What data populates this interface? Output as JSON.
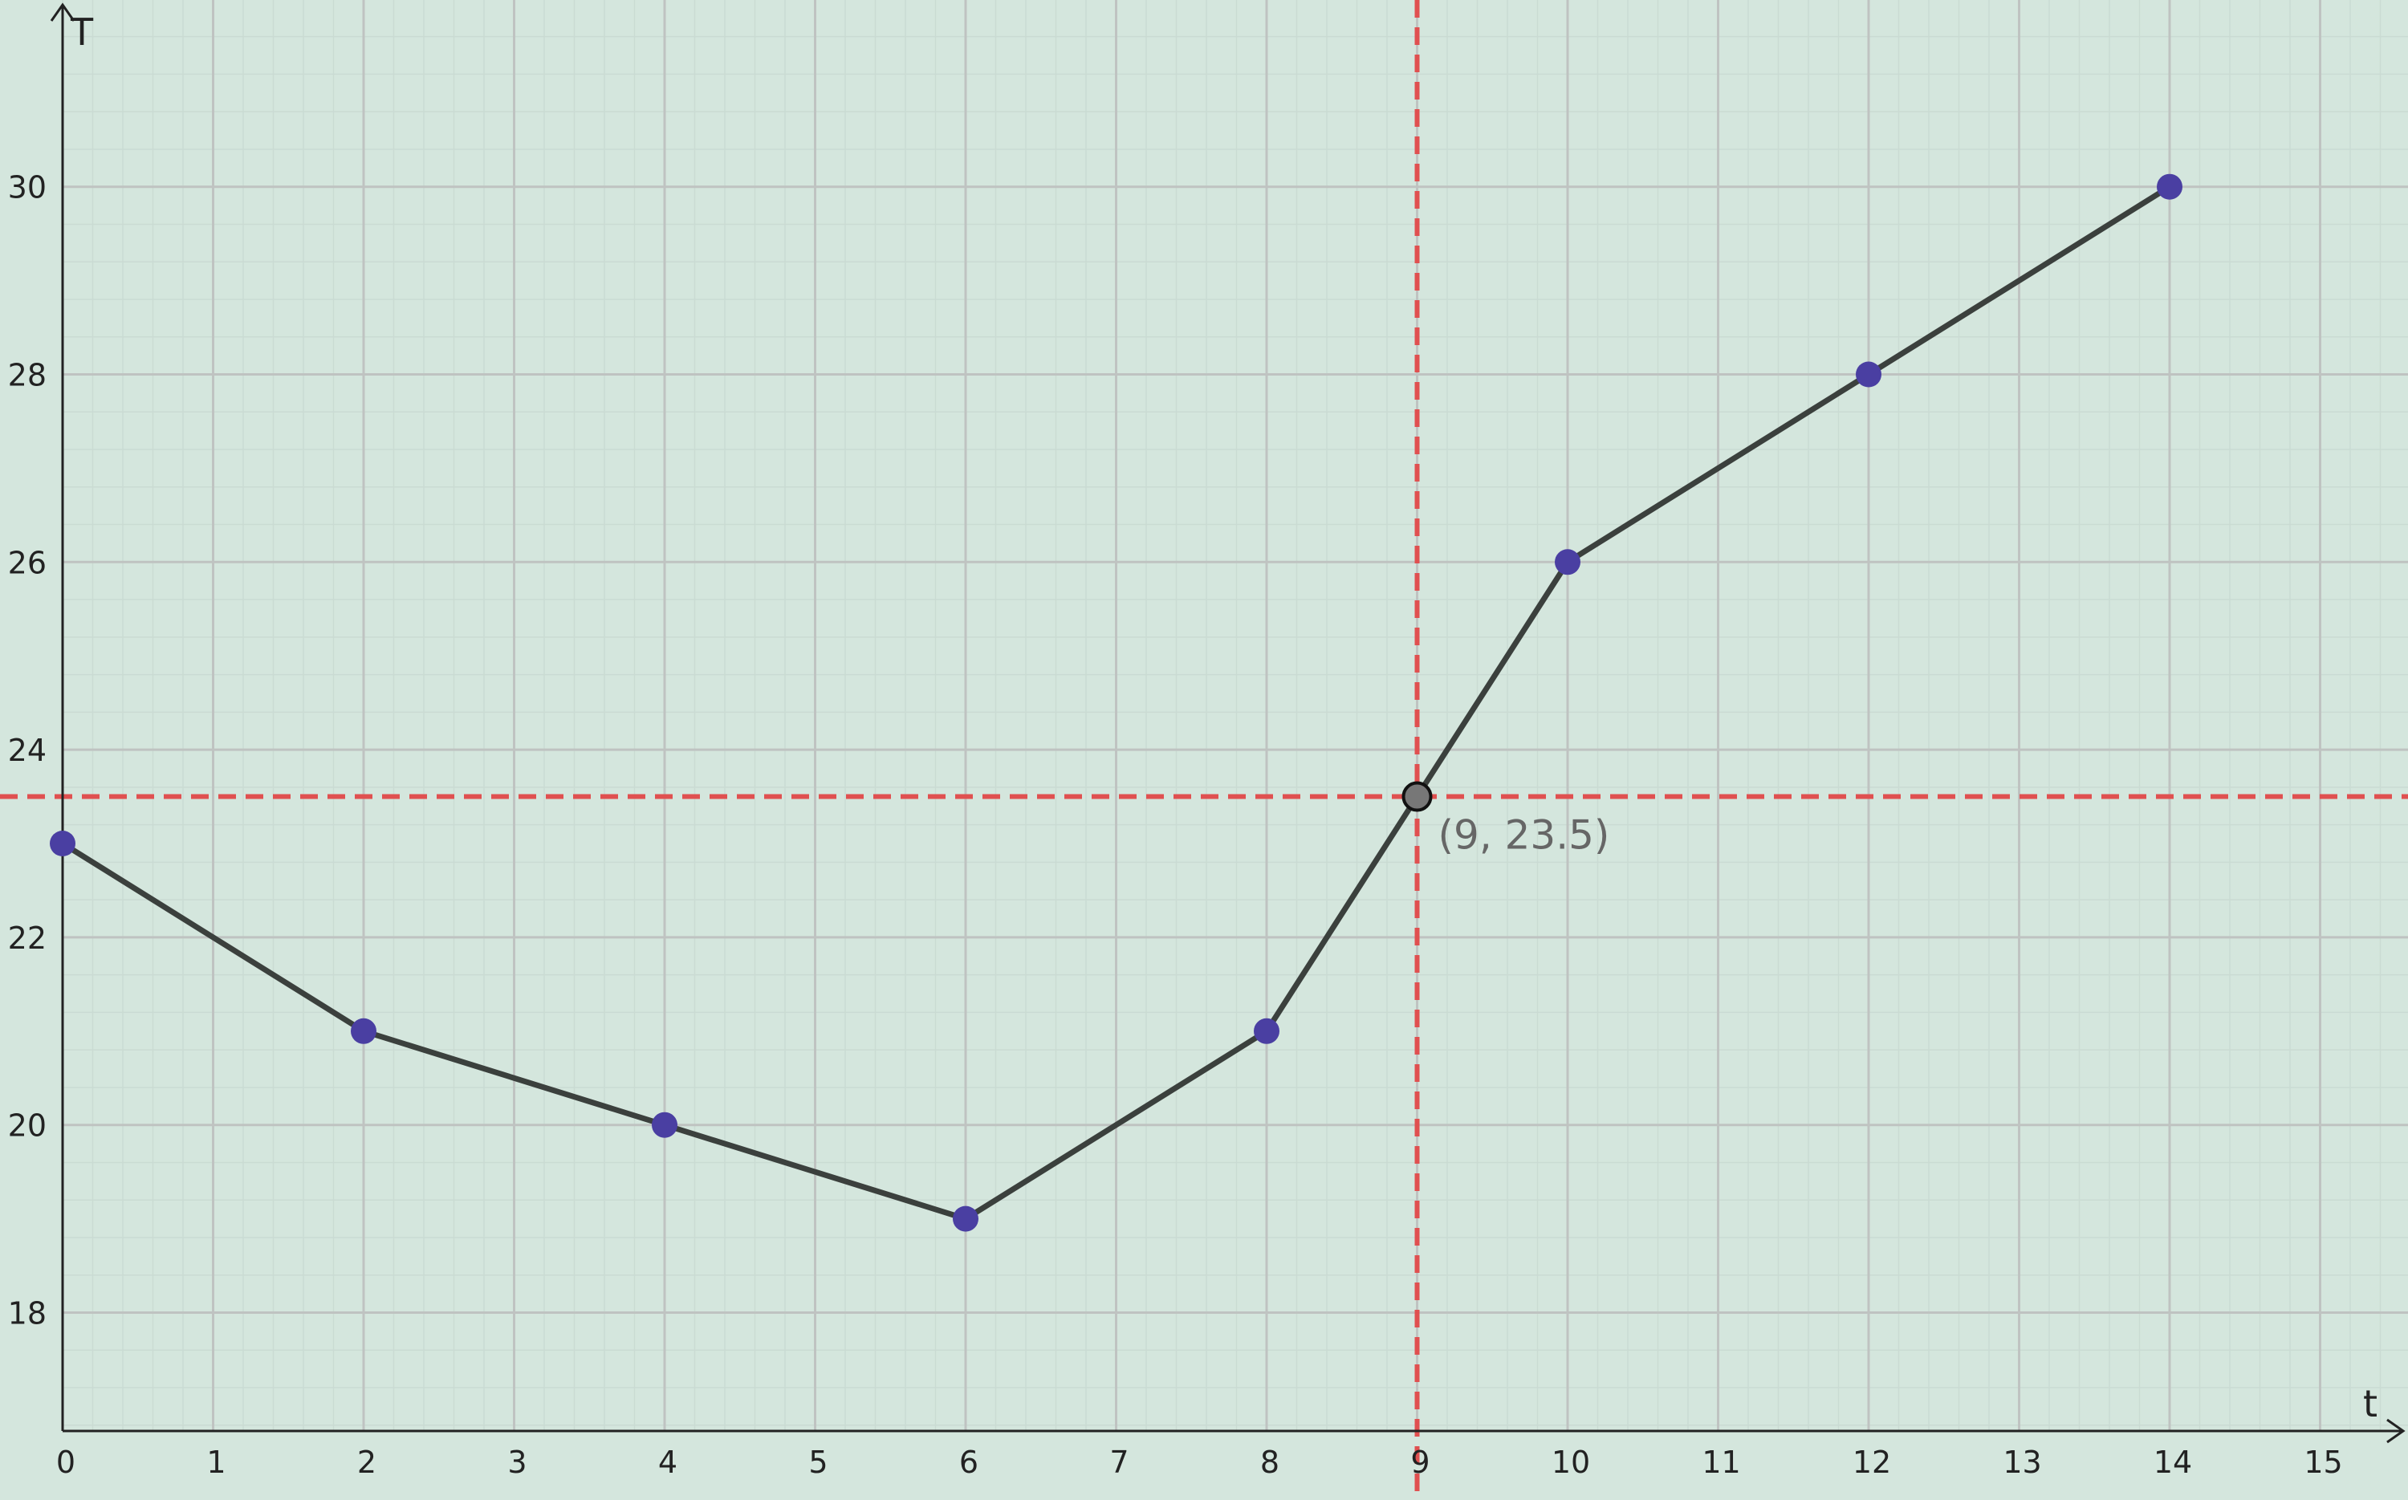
{
  "chart_data": {
    "type": "line",
    "xlabel": "t",
    "ylabel": "T",
    "xlim": [
      0,
      15.8
    ],
    "ylim": [
      16.8,
      32
    ],
    "x_ticks": [
      0,
      1,
      2,
      3,
      4,
      5,
      6,
      7,
      8,
      9,
      10,
      11,
      12,
      13,
      14,
      15
    ],
    "y_ticks": [
      18,
      20,
      22,
      24,
      26,
      28,
      30
    ],
    "grid": true,
    "minor_grid": true,
    "series": [
      {
        "x": [
          0,
          2,
          4,
          6,
          8,
          10,
          12,
          14
        ],
        "y": [
          23,
          21,
          20,
          19,
          21,
          26,
          28,
          30
        ]
      }
    ],
    "highlight_point": {
      "x": 9,
      "y": 23.5,
      "label": "(9, 23.5)"
    },
    "reference_lines": {
      "vertical_x": 9,
      "horizontal_y": 23.5,
      "style": "dashed"
    },
    "colors": {
      "background": "#d4e6dd",
      "major_grid": "#bfc3c1",
      "minor_grid": "#cadbd3",
      "line": "#3b403d",
      "marker": "#4a3fa2",
      "highlight": "#777777",
      "reference": "#e05050",
      "axis": "#222222"
    }
  }
}
